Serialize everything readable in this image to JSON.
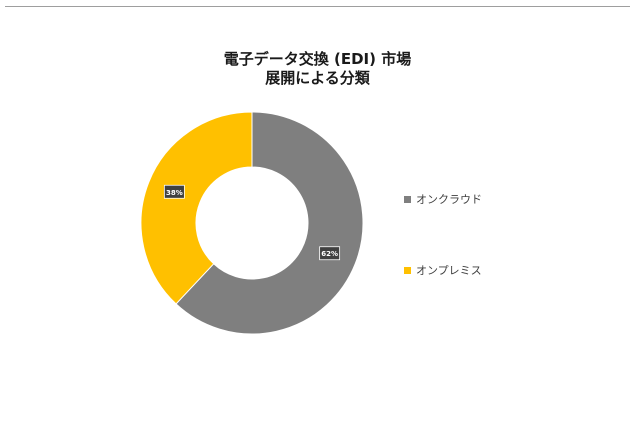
{
  "chart_data": {
    "type": "pie",
    "title_lines": [
      "電子データ交換 (EDI) 市場",
      "展開による分類"
    ],
    "categories": [
      "オンクラウド",
      "オンプレミス"
    ],
    "values": [
      62,
      38
    ],
    "data_labels": [
      "62%",
      "38%"
    ],
    "colors": [
      "#7f7f7f",
      "#ffc000"
    ],
    "donut": true,
    "legend_position": "right"
  }
}
